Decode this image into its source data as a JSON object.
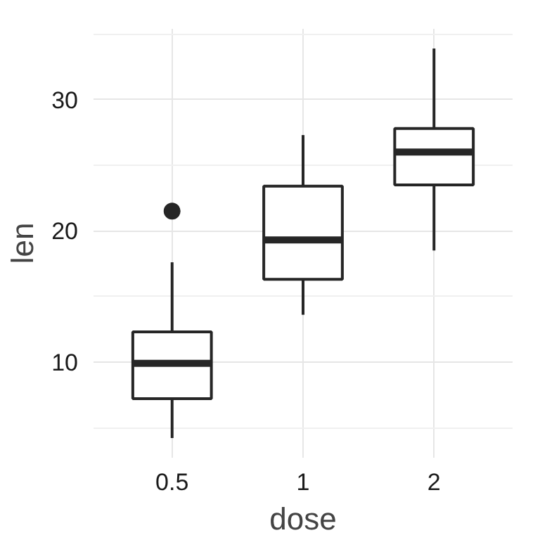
{
  "chart_data": {
    "type": "box",
    "xlabel": "dose",
    "ylabel": "len",
    "categories": [
      "0.5",
      "1",
      "2"
    ],
    "boxes": [
      {
        "low": 4.2,
        "q1": 7.2,
        "median": 9.9,
        "q3": 12.3,
        "high": 17.6,
        "outliers": [
          21.5
        ]
      },
      {
        "low": 13.6,
        "q1": 16.3,
        "median": 19.3,
        "q3": 23.4,
        "high": 27.3
      },
      {
        "low": 18.5,
        "q1": 23.5,
        "median": 26.0,
        "q3": 27.8,
        "high": 33.9
      }
    ],
    "color": "#262626",
    "ylim": [
      2.7,
      35.4
    ],
    "yticks": [
      10,
      20,
      30
    ],
    "grid": true
  }
}
